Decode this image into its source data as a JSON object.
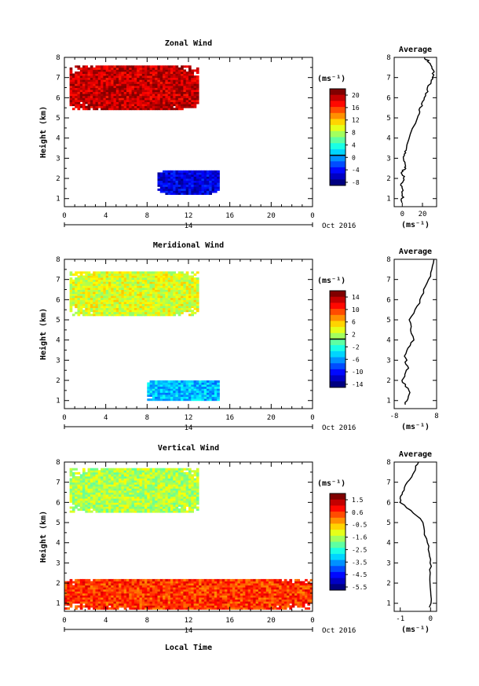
{
  "chart_data": [
    {
      "type": "heatmap",
      "title": "Zonal Wind",
      "ylabel": "Height (km)",
      "x_ticks": [
        "0",
        "4",
        "8",
        "12",
        "16",
        "20",
        "0"
      ],
      "y_ticks": [
        "1",
        "2",
        "3",
        "4",
        "5",
        "6",
        "7",
        "8"
      ],
      "ylim": [
        0.6,
        8
      ],
      "xlim": [
        0,
        24
      ],
      "date_label": "14",
      "month_label": "Oct 2016",
      "colorbar": {
        "unit": "(ms⁻¹)",
        "tick_labels": [
          "20",
          "16",
          "12",
          "8",
          "4",
          "0",
          "-4",
          "-8"
        ],
        "range": [
          -10,
          22
        ],
        "zero_line": 0
      },
      "average": {
        "title": "Average",
        "unit": "(ms⁻¹)",
        "x_ticks": [
          "0",
          "20"
        ],
        "xlim": [
          -8,
          34
        ],
        "y_ticks": [
          "1",
          "2",
          "3",
          "4",
          "5",
          "6",
          "7",
          "8"
        ],
        "profile": [
          [
            -1,
            0.8
          ],
          [
            1,
            1.2
          ],
          [
            -1,
            1.6
          ],
          [
            2,
            2.0
          ],
          [
            -1,
            2.3
          ],
          [
            4,
            2.6
          ],
          [
            1,
            3.0
          ],
          [
            3,
            3.4
          ],
          [
            15,
            5.0
          ],
          [
            19,
            5.6
          ],
          [
            24,
            6.2
          ],
          [
            28,
            6.8
          ],
          [
            31,
            7.2
          ],
          [
            28,
            7.7
          ],
          [
            22,
            8.0
          ]
        ]
      },
      "data_patches": [
        {
          "x0": 0.5,
          "x1": 13,
          "y0": 5.4,
          "y1": 7.5,
          "value": 20
        },
        {
          "x0": 9,
          "x1": 15,
          "y0": 1.2,
          "y1": 2.4,
          "value": -7
        }
      ]
    },
    {
      "type": "heatmap",
      "title": "Meridional Wind",
      "ylabel": "Height (km)",
      "x_ticks": [
        "0",
        "4",
        "8",
        "12",
        "16",
        "20",
        "0"
      ],
      "y_ticks": [
        "1",
        "2",
        "3",
        "4",
        "5",
        "6",
        "7",
        "8"
      ],
      "ylim": [
        0.6,
        8
      ],
      "xlim": [
        0,
        24
      ],
      "date_label": "14",
      "month_label": "Oct 2016",
      "colorbar": {
        "unit": "(ms⁻¹)",
        "tick_labels": [
          "14",
          "10",
          "6",
          "2",
          "-2",
          "-6",
          "-10",
          "-14"
        ],
        "range": [
          -16,
          16
        ],
        "zero_line": 0
      },
      "average": {
        "title": "Average",
        "unit": "(ms⁻¹)",
        "x_ticks": [
          "-8",
          "8"
        ],
        "xlim": [
          -8,
          8
        ],
        "y_ticks": [
          "1",
          "2",
          "3",
          "4",
          "5",
          "6",
          "7",
          "8"
        ],
        "profile": [
          [
            -4,
            0.8
          ],
          [
            -2,
            1.4
          ],
          [
            -5,
            2.0
          ],
          [
            -3,
            2.6
          ],
          [
            -4,
            3.2
          ],
          [
            -1,
            4.0
          ],
          [
            -2,
            5.0
          ],
          [
            2,
            6.0
          ],
          [
            5,
            7.0
          ],
          [
            7,
            8.0
          ]
        ]
      },
      "data_patches": [
        {
          "x0": 0.5,
          "x1": 13,
          "y0": 5.2,
          "y1": 7.3,
          "value": 3
        },
        {
          "x0": 8,
          "x1": 15,
          "y0": 1.0,
          "y1": 2.0,
          "value": -6
        }
      ]
    },
    {
      "type": "heatmap",
      "title": "Vertical Wind",
      "ylabel": "Height (km)",
      "xlabel": "Local Time",
      "x_ticks": [
        "0",
        "4",
        "8",
        "12",
        "16",
        "20",
        "0"
      ],
      "y_ticks": [
        "1",
        "2",
        "3",
        "4",
        "5",
        "6",
        "7",
        "8"
      ],
      "ylim": [
        0.6,
        8
      ],
      "xlim": [
        0,
        24
      ],
      "date_label": "14",
      "month_label": "Oct 2016",
      "colorbar": {
        "unit": "(ms⁻¹)",
        "tick_labels": [
          "1.5",
          "0.6",
          "-0.5",
          "-1.6",
          "-2.5",
          "-3.5",
          "-4.5",
          "-5.5"
        ],
        "range": [
          -6,
          2
        ],
        "zero_line": null
      },
      "average": {
        "title": "Average",
        "unit": "(ms⁻¹)",
        "x_ticks": [
          "-1",
          "0"
        ],
        "xlim": [
          -1.2,
          0.2
        ],
        "y_ticks": [
          "1",
          "2",
          "3",
          "4",
          "5",
          "6",
          "7",
          "8"
        ],
        "profile": [
          [
            0.0,
            0.8
          ],
          [
            0.0,
            2.0
          ],
          [
            0.0,
            3.0
          ],
          [
            -0.1,
            4.0
          ],
          [
            -0.3,
            5.2
          ],
          [
            -1.0,
            6.0
          ],
          [
            -0.9,
            6.6
          ],
          [
            -0.6,
            7.4
          ],
          [
            -0.4,
            8.0
          ]
        ]
      },
      "data_patches": [
        {
          "x0": 0.5,
          "x1": 13,
          "y0": 5.5,
          "y1": 7.6,
          "value": -1.6
        },
        {
          "x0": 0,
          "x1": 24,
          "y0": 0.7,
          "y1": 2.2,
          "value": 0.6
        }
      ]
    }
  ]
}
